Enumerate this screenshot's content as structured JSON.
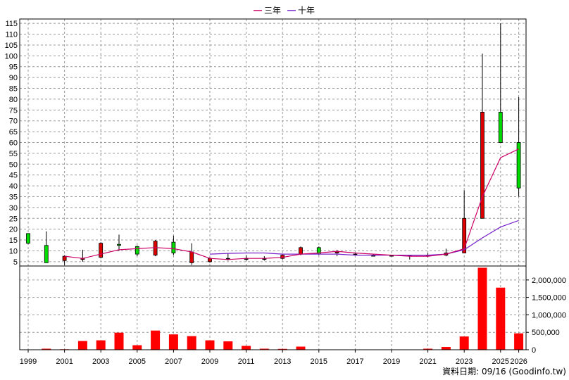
{
  "chart_data": {
    "type": "candlestick-with-volume",
    "legend": [
      {
        "name": "三年",
        "color": "#cc0066"
      },
      {
        "name": "十年",
        "color": "#7722cc"
      }
    ],
    "legend_position": "top-center",
    "source_note": "資料日期: 09/16 (Goodinfo.tw)",
    "x_tick_labels": [
      "1999",
      "2001",
      "2003",
      "2005",
      "2007",
      "2009",
      "2011",
      "2013",
      "2015",
      "2017",
      "2019",
      "2021",
      "2023",
      "2025",
      "2026"
    ],
    "price_axis": {
      "ylim": [
        3,
        117
      ],
      "ticks": [
        5,
        10,
        15,
        20,
        25,
        30,
        35,
        40,
        45,
        50,
        55,
        60,
        65,
        70,
        75,
        80,
        85,
        90,
        95,
        100,
        105,
        110,
        115
      ]
    },
    "volume_axis": {
      "ylim": [
        0,
        2400000
      ],
      "ticks": [
        0,
        500000,
        1000000,
        1500000,
        2000000
      ],
      "tick_labels": [
        "0",
        "500,000",
        "1,000,000",
        "1,500,000",
        "2,000,000"
      ]
    },
    "up_color": "#00dd00",
    "down_color": "#dd0000",
    "volume_color": "#ff0000",
    "candles": [
      {
        "year": 1999,
        "open": 13.5,
        "close": 18,
        "high": 18,
        "low": 13
      },
      {
        "year": 2000,
        "open": 4.5,
        "close": 12.5,
        "high": 19,
        "low": 4.5
      },
      {
        "year": 2001,
        "open": 7.5,
        "close": 5.5,
        "high": 8,
        "low": 3.5
      },
      {
        "year": 2002,
        "open": 6.5,
        "close": 6,
        "high": 10.5,
        "low": 5
      },
      {
        "year": 2003,
        "open": 13.5,
        "close": 7,
        "high": 14,
        "low": 6.5
      },
      {
        "year": 2004,
        "open": 12.5,
        "close": 13,
        "high": 17.5,
        "low": 10
      },
      {
        "year": 2005,
        "open": 8.5,
        "close": 12,
        "high": 12.5,
        "low": 7.5
      },
      {
        "year": 2006,
        "open": 14.5,
        "close": 8,
        "high": 15,
        "low": 7.5
      },
      {
        "year": 2007,
        "open": 9,
        "close": 14,
        "high": 17,
        "low": 8
      },
      {
        "year": 2008,
        "open": 9.5,
        "close": 4.5,
        "high": 13.5,
        "low": 3.5
      },
      {
        "year": 2009,
        "open": 6.5,
        "close": 5,
        "high": 7,
        "low": 4.5
      },
      {
        "year": 2010,
        "open": 6.5,
        "close": 6.5,
        "high": 9,
        "low": 5.5
      },
      {
        "year": 2011,
        "open": 6.5,
        "close": 6.5,
        "high": 8,
        "low": 5.5
      },
      {
        "year": 2012,
        "open": 6.5,
        "close": 6.5,
        "high": 7.5,
        "low": 5.5
      },
      {
        "year": 2013,
        "open": 8,
        "close": 6.5,
        "high": 8.5,
        "low": 6
      },
      {
        "year": 2014,
        "open": 11.5,
        "close": 8.5,
        "high": 12,
        "low": 8
      },
      {
        "year": 2015,
        "open": 8.5,
        "close": 11.5,
        "high": 12,
        "low": 8
      },
      {
        "year": 2016,
        "open": 9.5,
        "close": 9,
        "high": 10.5,
        "low": 7.5
      },
      {
        "year": 2017,
        "open": 8.5,
        "close": 8.5,
        "high": 9,
        "low": 8
      },
      {
        "year": 2018,
        "open": 8,
        "close": 8,
        "high": 8.5,
        "low": 7.5
      },
      {
        "year": 2019,
        "open": 8,
        "close": 8,
        "high": 8,
        "low": 7.5
      },
      {
        "year": 2020,
        "open": 8,
        "close": 8,
        "high": 8,
        "low": 6
      },
      {
        "year": 2021,
        "open": 8,
        "close": 7.5,
        "high": 9,
        "low": 7
      },
      {
        "year": 2022,
        "open": 9,
        "close": 8,
        "high": 11,
        "low": 7.5
      },
      {
        "year": 2023,
        "open": 25,
        "close": 9,
        "high": 38,
        "low": 9
      },
      {
        "year": 2024,
        "open": 74,
        "close": 25,
        "high": 101,
        "low": 25
      },
      {
        "year": 2025,
        "open": 60,
        "close": 74,
        "high": 115,
        "low": 60
      },
      {
        "year": 2026,
        "open": 39,
        "close": 60,
        "high": 81,
        "low": 35
      }
    ],
    "ma_three_year": [
      {
        "year": 2001,
        "value": 7.5
      },
      {
        "year": 2002,
        "value": 6.5
      },
      {
        "year": 2003,
        "value": 8.5
      },
      {
        "year": 2004,
        "value": 10.5
      },
      {
        "year": 2005,
        "value": 11
      },
      {
        "year": 2006,
        "value": 11.5
      },
      {
        "year": 2007,
        "value": 11
      },
      {
        "year": 2008,
        "value": 9.5
      },
      {
        "year": 2009,
        "value": 6.5
      },
      {
        "year": 2010,
        "value": 6
      },
      {
        "year": 2011,
        "value": 6.5
      },
      {
        "year": 2012,
        "value": 6.5
      },
      {
        "year": 2013,
        "value": 7
      },
      {
        "year": 2014,
        "value": 8.5
      },
      {
        "year": 2015,
        "value": 9
      },
      {
        "year": 2016,
        "value": 9.8
      },
      {
        "year": 2017,
        "value": 9
      },
      {
        "year": 2018,
        "value": 8.5
      },
      {
        "year": 2019,
        "value": 8
      },
      {
        "year": 2020,
        "value": 7.5
      },
      {
        "year": 2021,
        "value": 7.5
      },
      {
        "year": 2022,
        "value": 8.5
      },
      {
        "year": 2023,
        "value": 11
      },
      {
        "year": 2024,
        "value": 35
      },
      {
        "year": 2025,
        "value": 53
      },
      {
        "year": 2026,
        "value": 57
      }
    ],
    "ma_ten_year": [
      {
        "year": 2009,
        "value": 8.5
      },
      {
        "year": 2010,
        "value": 8.8
      },
      {
        "year": 2011,
        "value": 9
      },
      {
        "year": 2012,
        "value": 9
      },
      {
        "year": 2013,
        "value": 8.5
      },
      {
        "year": 2014,
        "value": 8.5
      },
      {
        "year": 2015,
        "value": 8.5
      },
      {
        "year": 2016,
        "value": 8.5
      },
      {
        "year": 2017,
        "value": 8
      },
      {
        "year": 2018,
        "value": 8
      },
      {
        "year": 2019,
        "value": 8
      },
      {
        "year": 2020,
        "value": 8
      },
      {
        "year": 2021,
        "value": 8
      },
      {
        "year": 2022,
        "value": 8.5
      },
      {
        "year": 2023,
        "value": 10.5
      },
      {
        "year": 2024,
        "value": 16
      },
      {
        "year": 2025,
        "value": 21
      },
      {
        "year": 2026,
        "value": 24
      }
    ],
    "volume": [
      {
        "year": 1999,
        "value": 5000
      },
      {
        "year": 2000,
        "value": 30000
      },
      {
        "year": 2001,
        "value": 15000
      },
      {
        "year": 2002,
        "value": 250000
      },
      {
        "year": 2003,
        "value": 270000
      },
      {
        "year": 2004,
        "value": 490000
      },
      {
        "year": 2005,
        "value": 130000
      },
      {
        "year": 2006,
        "value": 550000
      },
      {
        "year": 2007,
        "value": 440000
      },
      {
        "year": 2008,
        "value": 390000
      },
      {
        "year": 2009,
        "value": 270000
      },
      {
        "year": 2010,
        "value": 240000
      },
      {
        "year": 2011,
        "value": 110000
      },
      {
        "year": 2012,
        "value": 30000
      },
      {
        "year": 2013,
        "value": 25000
      },
      {
        "year": 2014,
        "value": 90000
      },
      {
        "year": 2015,
        "value": 10000
      },
      {
        "year": 2016,
        "value": 10000
      },
      {
        "year": 2017,
        "value": 10000
      },
      {
        "year": 2018,
        "value": 5000
      },
      {
        "year": 2019,
        "value": 5000
      },
      {
        "year": 2020,
        "value": 5000
      },
      {
        "year": 2021,
        "value": 30000
      },
      {
        "year": 2022,
        "value": 80000
      },
      {
        "year": 2023,
        "value": 380000
      },
      {
        "year": 2024,
        "value": 2350000
      },
      {
        "year": 2025,
        "value": 1780000
      },
      {
        "year": 2026,
        "value": 470000
      }
    ]
  }
}
